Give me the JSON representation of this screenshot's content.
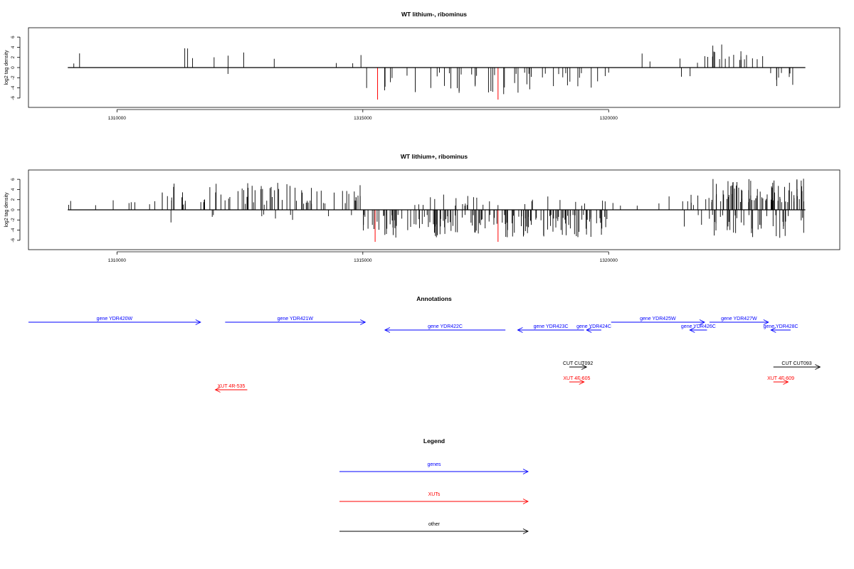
{
  "chart_data": [
    {
      "type": "bar",
      "title": "WT lithium-, ribominus",
      "ylabel": "log2 tag density",
      "ylim": [
        -7,
        7
      ],
      "yticks": [
        6,
        4,
        2,
        0,
        -2,
        -4,
        -6
      ],
      "xlim": [
        1308200,
        1324700
      ],
      "xticks": [
        1310000,
        1315000,
        1320000
      ],
      "xtick_labels": [
        "1310000",
        "1315000",
        "1320000"
      ],
      "axis_range": [
        1309000,
        1324000
      ],
      "bars": [
        {
          "segment": [
            1309000,
            1315000
          ],
          "direction": 1,
          "density": 0.01,
          "min": 0.8,
          "max": 4.0
        },
        {
          "segment": [
            1312200,
            1312400
          ],
          "direction": -1,
          "density": 0.02,
          "min": 1.0,
          "max": 2.0
        },
        {
          "segment": [
            1315000,
            1320000
          ],
          "direction": -1,
          "density": 0.05,
          "min": 1.0,
          "max": 5.5
        },
        {
          "segment": [
            1320000,
            1322000
          ],
          "direction": 1,
          "density": 0.012,
          "min": 0.8,
          "max": 3.0
        },
        {
          "segment": [
            1321000,
            1322000
          ],
          "direction": -1,
          "density": 0.01,
          "min": 1.0,
          "max": 3.5
        },
        {
          "segment": [
            1322000,
            1323200
          ],
          "direction": 1,
          "density": 0.08,
          "min": 1.5,
          "max": 5.0
        },
        {
          "segment": [
            1323200,
            1324000
          ],
          "direction": -1,
          "density": 0.05,
          "min": 1.0,
          "max": 5.0
        }
      ],
      "highlight_bars": [
        {
          "x": 1315300,
          "y": -6.3
        },
        {
          "x": 1317750,
          "y": -6.3
        }
      ]
    },
    {
      "type": "bar",
      "title": "WT lithium+, ribominus",
      "ylabel": "log2 tag density",
      "ylim": [
        -7,
        7
      ],
      "yticks": [
        6,
        4,
        2,
        0,
        -2,
        -4,
        -6
      ],
      "xlim": [
        1308200,
        1324700
      ],
      "xticks": [
        1310000,
        1315000,
        1320000
      ],
      "xtick_labels": [
        "1310000",
        "1315000",
        "1320000"
      ],
      "axis_range": [
        1309000,
        1324000
      ],
      "bars": [
        {
          "segment": [
            1309000,
            1310800
          ],
          "direction": 1,
          "density": 0.025,
          "min": 0.8,
          "max": 3.0
        },
        {
          "segment": [
            1310800,
            1315000
          ],
          "direction": 1,
          "density": 0.09,
          "min": 1.0,
          "max": 5.5
        },
        {
          "segment": [
            1311000,
            1315000
          ],
          "direction": -1,
          "density": 0.012,
          "min": 0.8,
          "max": 2.5
        },
        {
          "segment": [
            1315000,
            1320000
          ],
          "direction": -1,
          "density": 0.16,
          "min": 1.0,
          "max": 5.5
        },
        {
          "segment": [
            1315200,
            1320000
          ],
          "direction": 1,
          "density": 0.03,
          "min": 0.8,
          "max": 3.0
        },
        {
          "segment": [
            1320000,
            1322000
          ],
          "direction": 1,
          "density": 0.03,
          "min": 0.8,
          "max": 3.0
        },
        {
          "segment": [
            1321500,
            1322000
          ],
          "direction": -1,
          "density": 0.03,
          "min": 1.0,
          "max": 3.5
        },
        {
          "segment": [
            1322000,
            1324000
          ],
          "direction": 1,
          "density": 0.2,
          "min": 1.5,
          "max": 6.2
        },
        {
          "segment": [
            1322000,
            1324000
          ],
          "direction": -1,
          "density": 0.1,
          "min": 1.0,
          "max": 6.0
        }
      ],
      "highlight_bars": [
        {
          "x": 1315250,
          "y": -6.3
        },
        {
          "x": 1317750,
          "y": -6.3
        }
      ]
    }
  ],
  "annotations": {
    "title": "Annotations",
    "features": [
      {
        "label": "gene YDR420W",
        "start": 1308200,
        "end": 1311700,
        "strand": "+",
        "row": 0,
        "type": "gene"
      },
      {
        "label": "gene YDR421W",
        "start": 1312200,
        "end": 1315050,
        "strand": "+",
        "row": 0,
        "type": "gene"
      },
      {
        "label": "gene YDR422C",
        "start": 1315450,
        "end": 1317900,
        "strand": "-",
        "row": 1,
        "type": "gene"
      },
      {
        "label": "gene YDR423C",
        "start": 1318150,
        "end": 1319500,
        "strand": "-",
        "row": 1,
        "type": "gene"
      },
      {
        "label": "gene YDR424C",
        "start": 1319550,
        "end": 1319850,
        "strand": "-",
        "row": 1,
        "type": "gene"
      },
      {
        "label": "gene YDR425W",
        "start": 1320050,
        "end": 1321950,
        "strand": "+",
        "row": 0,
        "type": "gene"
      },
      {
        "label": "gene YDR426C",
        "start": 1321650,
        "end": 1322000,
        "strand": "-",
        "row": 1,
        "type": "gene"
      },
      {
        "label": "gene YDR427W",
        "start": 1322050,
        "end": 1323250,
        "strand": "+",
        "row": 0,
        "type": "gene"
      },
      {
        "label": "gene YDR428C",
        "start": 1323300,
        "end": 1323700,
        "strand": "-",
        "row": 1,
        "type": "gene"
      },
      {
        "label": "CUT CUT092",
        "start": 1319200,
        "end": 1319550,
        "strand": "+",
        "row": 2,
        "type": "cut"
      },
      {
        "label": "CUT CUT093",
        "start": 1323350,
        "end": 1324300,
        "strand": "+",
        "row": 2,
        "type": "cut"
      },
      {
        "label": "XUT 4F-605",
        "start": 1319200,
        "end": 1319500,
        "strand": "+",
        "row": 3,
        "type": "xut"
      },
      {
        "label": "XUT 4F-609",
        "start": 1323350,
        "end": 1323650,
        "strand": "+",
        "row": 3,
        "type": "xut"
      },
      {
        "label": "XUT 4R-535",
        "start": 1312000,
        "end": 1312650,
        "strand": "-",
        "row": 4,
        "type": "xut"
      }
    ]
  },
  "legend": {
    "title": "Legend",
    "items": [
      {
        "label": "genes",
        "type": "gene"
      },
      {
        "label": "XUTs",
        "type": "xut"
      },
      {
        "label": "other",
        "type": "cut"
      }
    ]
  },
  "colors": {
    "gene": "#0000ff",
    "xut": "#ff0000",
    "cut": "#000000",
    "bar": "#000000",
    "highlight": "#ff0000"
  }
}
